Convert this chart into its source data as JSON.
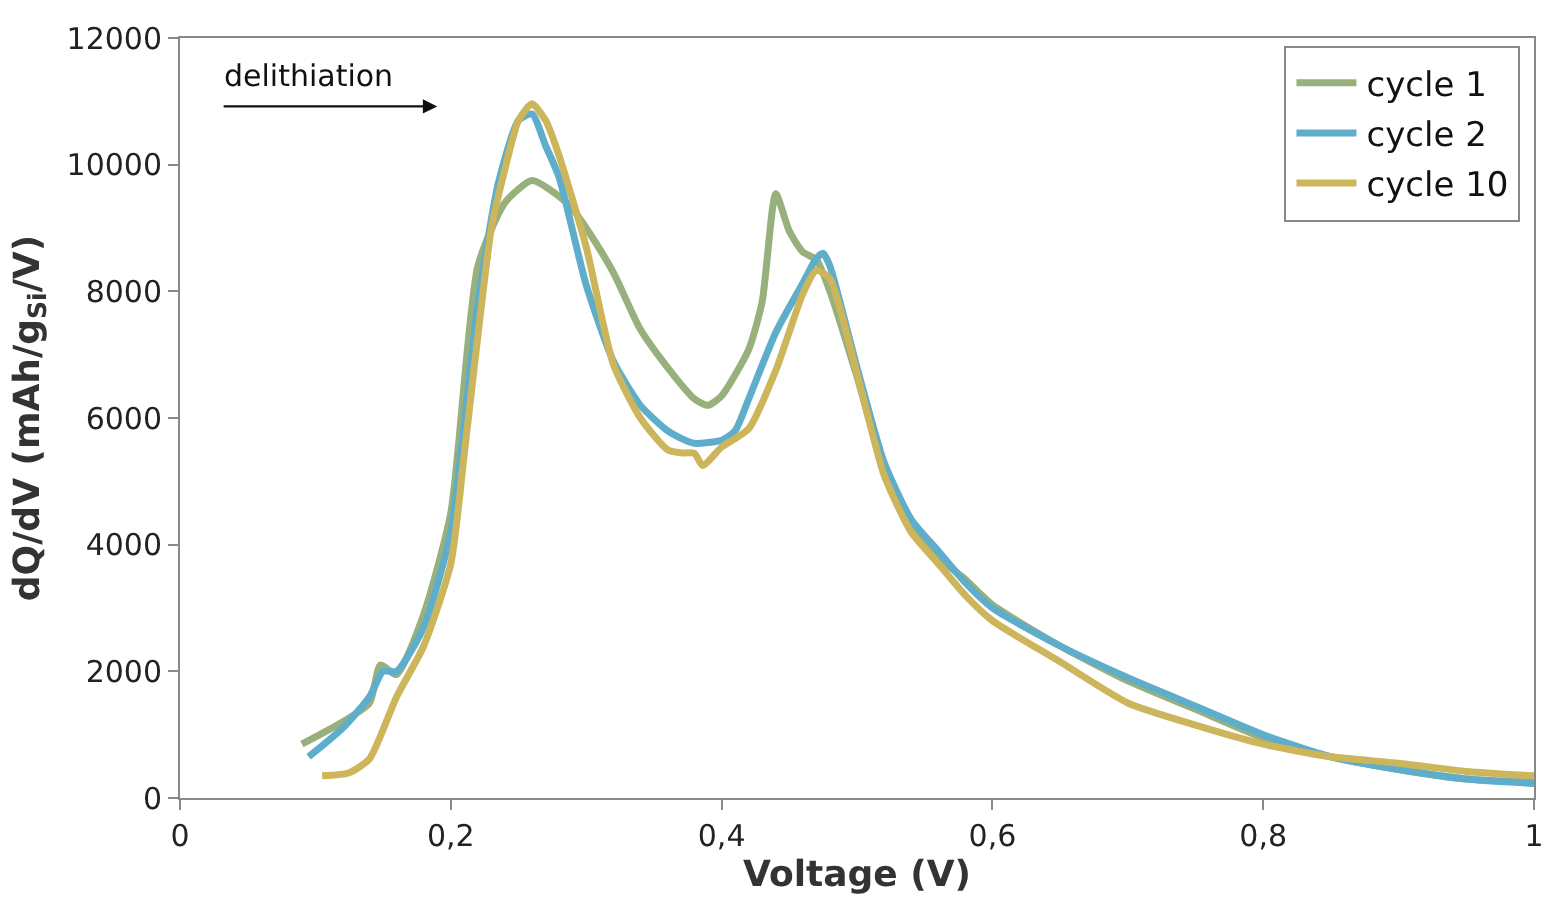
{
  "chart_data": {
    "type": "line",
    "xlabel": "Voltage (V)",
    "ylabel": "dQ/dV (mAh/g$_{Si}$/V)",
    "xlim": [
      0,
      1
    ],
    "xticks": [
      {
        "value": 0,
        "label": "0"
      },
      {
        "value": 0.2,
        "label": "0,2"
      },
      {
        "value": 0.4,
        "label": "0,4"
      },
      {
        "value": 0.6,
        "label": "0,6"
      },
      {
        "value": 0.8,
        "label": "0,8"
      },
      {
        "value": 1,
        "label": "1"
      }
    ],
    "ylim": [
      0,
      12000
    ],
    "yticks": [
      0,
      2000,
      4000,
      6000,
      8000,
      10000,
      12000
    ],
    "legend": "top right",
    "marker": "none",
    "line_style": "solid",
    "annotations": [
      "delithiation"
    ],
    "series": [
      {
        "name": "cycle 1",
        "color": "#98b07c",
        "x": [
          0.09,
          0.12,
          0.14,
          0.148,
          0.16,
          0.18,
          0.2,
          0.22,
          0.24,
          0.26,
          0.28,
          0.29,
          0.3,
          0.32,
          0.34,
          0.36,
          0.38,
          0.39,
          0.4,
          0.42,
          0.43,
          0.44,
          0.45,
          0.46,
          0.47,
          0.48,
          0.5,
          0.52,
          0.54,
          0.56,
          0.58,
          0.6,
          0.65,
          0.7,
          0.75,
          0.8,
          0.85,
          0.9,
          0.95,
          1.0
        ],
        "values": [
          850,
          1200,
          1500,
          2100,
          1950,
          2900,
          4500,
          8400,
          9400,
          9750,
          9500,
          9300,
          9000,
          8300,
          7400,
          6800,
          6300,
          6200,
          6350,
          7080,
          7840,
          9540,
          8950,
          8620,
          8500,
          8000,
          6650,
          5200,
          4360,
          3800,
          3450,
          3050,
          2400,
          1850,
          1400,
          950,
          650,
          450,
          300,
          250
        ]
      },
      {
        "name": "cycle 2",
        "color": "#5eaecb",
        "x": [
          0.095,
          0.12,
          0.14,
          0.15,
          0.16,
          0.18,
          0.2,
          0.22,
          0.235,
          0.25,
          0.26,
          0.27,
          0.28,
          0.3,
          0.32,
          0.34,
          0.36,
          0.373,
          0.38,
          0.4,
          0.41,
          0.42,
          0.44,
          0.46,
          0.47,
          0.475,
          0.48,
          0.5,
          0.52,
          0.54,
          0.56,
          0.58,
          0.6,
          0.65,
          0.7,
          0.75,
          0.8,
          0.85,
          0.9,
          0.95,
          1.0
        ],
        "values": [
          650,
          1100,
          1600,
          2000,
          2000,
          2700,
          4200,
          7800,
          9700,
          10700,
          10800,
          10300,
          9800,
          8100,
          6900,
          6200,
          5800,
          5650,
          5600,
          5650,
          5800,
          6300,
          7350,
          8130,
          8520,
          8600,
          8400,
          6800,
          5300,
          4400,
          3900,
          3400,
          3000,
          2400,
          1900,
          1450,
          1000,
          650,
          450,
          300,
          230
        ]
      },
      {
        "name": "cycle 10",
        "color": "#cdb55c",
        "x": [
          0.105,
          0.125,
          0.14,
          0.16,
          0.18,
          0.2,
          0.21,
          0.22,
          0.23,
          0.24,
          0.25,
          0.26,
          0.27,
          0.28,
          0.3,
          0.32,
          0.34,
          0.36,
          0.37,
          0.38,
          0.386,
          0.4,
          0.42,
          0.44,
          0.46,
          0.47,
          0.48,
          0.5,
          0.52,
          0.54,
          0.56,
          0.58,
          0.6,
          0.65,
          0.7,
          0.75,
          0.8,
          0.85,
          0.9,
          0.95,
          1.0
        ],
        "values": [
          350,
          400,
          620,
          1600,
          2400,
          3700,
          5440,
          7300,
          9000,
          9930,
          10700,
          10960,
          10700,
          10140,
          8700,
          6850,
          6000,
          5500,
          5450,
          5440,
          5250,
          5540,
          5830,
          6750,
          7960,
          8330,
          8200,
          6700,
          5100,
          4200,
          3700,
          3200,
          2800,
          2150,
          1500,
          1150,
          850,
          650,
          550,
          420,
          350
        ]
      }
    ]
  }
}
